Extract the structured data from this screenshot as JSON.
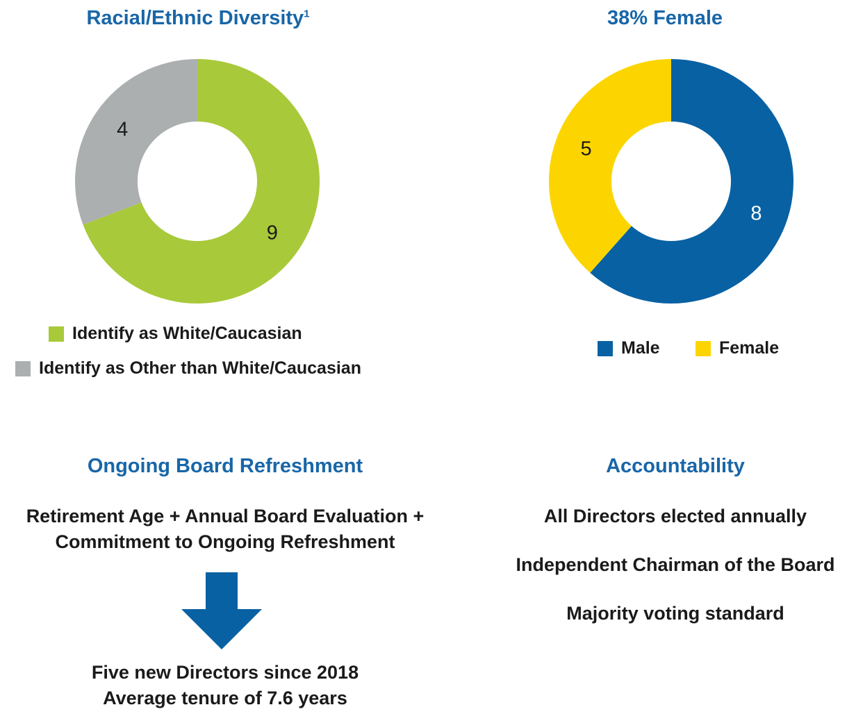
{
  "chart_data": [
    {
      "type": "pie",
      "variant": "donut",
      "title": "Racial/Ethnic Diversity",
      "title_footnote": "1",
      "categories": [
        "Identify as White/Caucasian",
        "Identify as Other than White/Caucasian"
      ],
      "values": [
        9,
        4
      ],
      "data_labels": [
        "9",
        "4"
      ],
      "colors": [
        "#a8c93a",
        "#acafb0"
      ],
      "legend": "bottom"
    },
    {
      "type": "pie",
      "variant": "donut",
      "title": "38% Female",
      "categories": [
        "Male",
        "Female"
      ],
      "values": [
        8,
        5
      ],
      "data_labels": [
        "8",
        "5"
      ],
      "colors": [
        "#0861a3",
        "#fcd500"
      ],
      "label_colors": [
        "#ffffff",
        "#1a1a1a"
      ],
      "legend": "bottom"
    }
  ],
  "refreshment": {
    "title": "Ongoing Board Refreshment",
    "line1": "Retirement Age + Annual Board Evaluation +",
    "line2": "Commitment to Ongoing Refreshment",
    "arrow_color": "#0861a3",
    "result1": "Five new Directors since 2018",
    "result2": "Average tenure of 7.6 years"
  },
  "accountability": {
    "title": "Accountability",
    "items": [
      "All Directors elected annually",
      "Independent Chairman of the Board",
      "Majority voting standard"
    ]
  }
}
